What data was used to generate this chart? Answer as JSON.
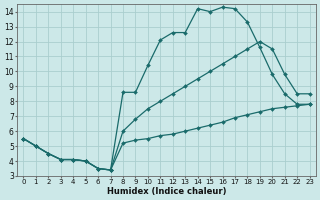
{
  "xlabel": "Humidex (Indice chaleur)",
  "background_color": "#cce8e8",
  "grid_color": "#aacece",
  "line_color": "#1a6b6b",
  "xlim": [
    -0.5,
    23.5
  ],
  "ylim": [
    3,
    14.5
  ],
  "xticks": [
    0,
    1,
    2,
    3,
    4,
    5,
    6,
    7,
    8,
    9,
    10,
    11,
    12,
    13,
    14,
    15,
    16,
    17,
    18,
    19,
    20,
    21,
    22,
    23
  ],
  "yticks": [
    3,
    4,
    5,
    6,
    7,
    8,
    9,
    10,
    11,
    12,
    13,
    14
  ],
  "line1_x": [
    0,
    1,
    2,
    3,
    4,
    5,
    6,
    7,
    8,
    9,
    10,
    11,
    12,
    13,
    14,
    15,
    16,
    17,
    18,
    19,
    20,
    21,
    22,
    23
  ],
  "line1_y": [
    5.5,
    5.0,
    4.5,
    4.1,
    4.1,
    4.0,
    3.5,
    3.4,
    8.6,
    8.6,
    10.4,
    12.1,
    12.6,
    12.6,
    14.2,
    14.0,
    14.3,
    14.2,
    13.3,
    11.6,
    9.8,
    8.5,
    7.8,
    7.8
  ],
  "line2_x": [
    0,
    1,
    2,
    3,
    4,
    5,
    6,
    7,
    8,
    9,
    10,
    11,
    12,
    13,
    14,
    15,
    16,
    17,
    18,
    19,
    20,
    21,
    22,
    23
  ],
  "line2_y": [
    5.5,
    5.0,
    4.5,
    4.1,
    4.1,
    4.0,
    3.5,
    3.4,
    6.0,
    6.8,
    7.5,
    8.0,
    8.5,
    9.0,
    9.5,
    10.0,
    10.5,
    11.0,
    11.5,
    12.0,
    11.5,
    9.8,
    8.5,
    8.5
  ],
  "line3_x": [
    0,
    1,
    2,
    3,
    4,
    5,
    6,
    7,
    8,
    9,
    10,
    11,
    12,
    13,
    14,
    15,
    16,
    17,
    18,
    19,
    20,
    21,
    22,
    23
  ],
  "line3_y": [
    5.5,
    5.0,
    4.5,
    4.1,
    4.1,
    4.0,
    3.5,
    3.4,
    5.2,
    5.4,
    5.5,
    5.7,
    5.8,
    6.0,
    6.2,
    6.4,
    6.6,
    6.9,
    7.1,
    7.3,
    7.5,
    7.6,
    7.7,
    7.8
  ]
}
